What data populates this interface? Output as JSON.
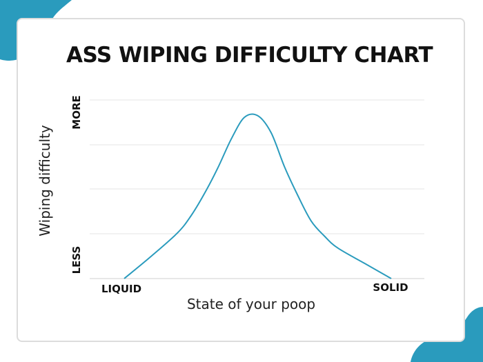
{
  "colors": {
    "accent_blob": "#2a9bbd",
    "curve": "#2a9bbd",
    "card_border": "#dcdcdc",
    "text": "#111111",
    "grid": "#e4e4e4"
  },
  "chart_data": {
    "type": "line",
    "title": "ASS WIPING DIFFICULTY CHART",
    "xlabel": "State of your poop",
    "ylabel": "Wiping difficulty",
    "x_tick_labels": [
      "LIQUID",
      "SOLID"
    ],
    "y_tick_labels": [
      "LESS",
      "MORE"
    ],
    "xlim": [
      0,
      1
    ],
    "ylim": [
      0,
      1
    ],
    "grid": true,
    "series": [
      {
        "x": [
          0,
          0.1,
          0.2,
          0.25,
          0.3,
          0.35,
          0.4,
          0.45,
          0.5,
          0.55,
          0.6,
          0.65,
          0.7,
          0.75,
          0.8,
          0.9,
          1
        ],
        "y": [
          0,
          0.13,
          0.27,
          0.37,
          0.5,
          0.65,
          0.82,
          0.95,
          0.96,
          0.86,
          0.66,
          0.49,
          0.34,
          0.25,
          0.18,
          0.09,
          0
        ]
      }
    ]
  }
}
